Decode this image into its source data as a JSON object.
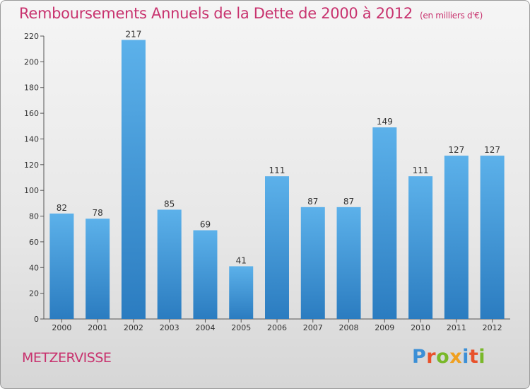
{
  "title": "Remboursements Annuels de la Dette de 2000 à 2012",
  "subtitle": "(en milliers d'€)",
  "place": "METZERVISSE",
  "logo": {
    "text": "Proxiti",
    "letter_colors": [
      "#3b8fd6",
      "#e8512a",
      "#79b829",
      "#f0a020",
      "#3b8fd6",
      "#e8512a",
      "#79b829"
    ]
  },
  "colors": {
    "title": "#c8326e",
    "bar_top": "#5cb1ea",
    "bar_bottom": "#2b7cc0"
  },
  "chart_data": {
    "type": "bar",
    "title": "Remboursements Annuels de la Dette de 2000 à 2012",
    "subtitle": "(en milliers d'€)",
    "categories": [
      "2000",
      "2001",
      "2002",
      "2003",
      "2004",
      "2005",
      "2006",
      "2007",
      "2008",
      "2009",
      "2010",
      "2011",
      "2012"
    ],
    "values": [
      82,
      78,
      217,
      85,
      69,
      41,
      111,
      87,
      87,
      149,
      111,
      127,
      127
    ],
    "ylim": [
      0,
      220
    ],
    "yticks": [
      0,
      20,
      40,
      60,
      80,
      100,
      120,
      140,
      160,
      180,
      200,
      220
    ],
    "grid": false,
    "data_labels": true
  }
}
